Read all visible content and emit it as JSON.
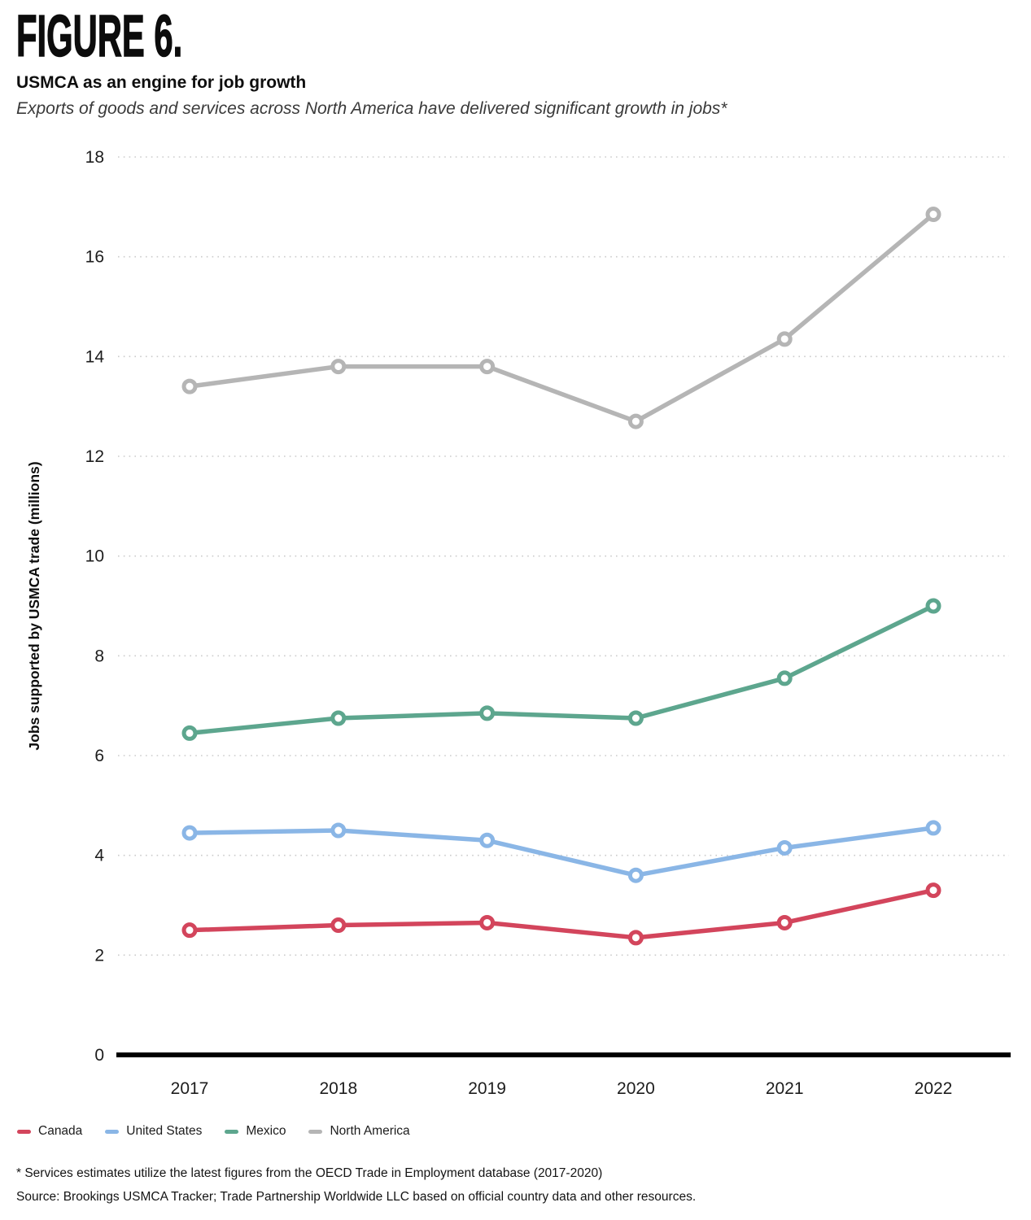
{
  "header": {
    "figure_label": "FIGURE 6.",
    "title": "USMCA as an engine for job growth",
    "subtitle": "Exports of goods and services across North America have delivered significant growth in jobs*"
  },
  "chart_data": {
    "type": "line",
    "title": "USMCA as an engine for job growth",
    "x": [
      2017,
      2018,
      2019,
      2020,
      2021,
      2022
    ],
    "series": [
      {
        "name": "Canada",
        "color": "#d3455c",
        "values": [
          2.5,
          2.6,
          2.65,
          2.35,
          2.65,
          3.3
        ]
      },
      {
        "name": "United States",
        "color": "#8ab6e6",
        "values": [
          4.45,
          4.5,
          4.3,
          3.6,
          4.15,
          4.55
        ]
      },
      {
        "name": "Mexico",
        "color": "#5da68e",
        "values": [
          6.45,
          6.75,
          6.85,
          6.75,
          7.55,
          9.0
        ]
      },
      {
        "name": "North America",
        "color": "#b5b5b5",
        "values": [
          13.4,
          13.8,
          13.8,
          12.7,
          14.35,
          16.85
        ]
      }
    ],
    "xlabel": "",
    "ylabel": "Jobs supported by USMCA trade (millions)",
    "ylim": [
      0,
      18
    ],
    "ytick_step": 2,
    "grid": true,
    "grid_style": "dotted",
    "marker": "open-circle",
    "legend_position": "bottom"
  },
  "footnotes": {
    "note": "* Services estimates utilize the latest figures from the OECD Trade in Employment database (2017-2020)",
    "source": "Source: Brookings USMCA Tracker; Trade Partnership Worldwide LLC based on official country data and other resources."
  }
}
